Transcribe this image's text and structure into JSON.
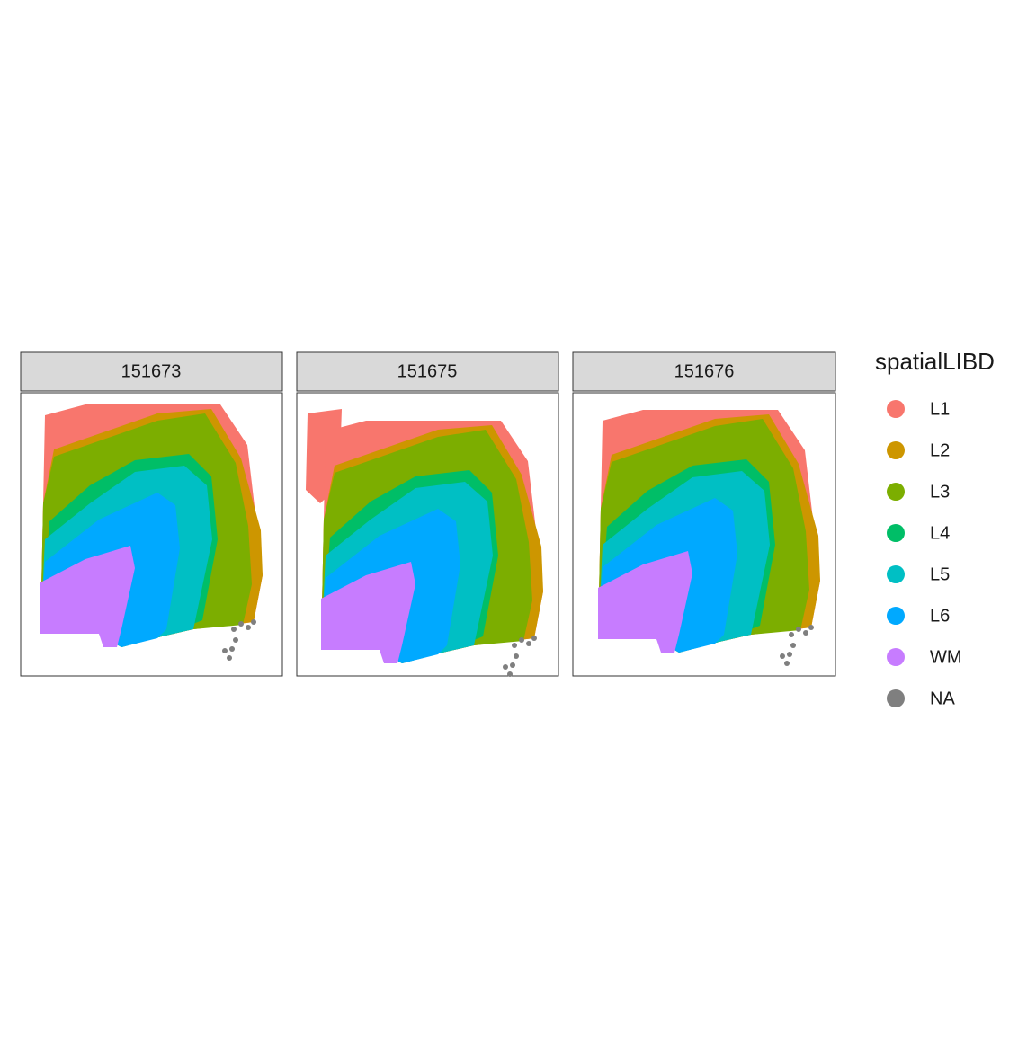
{
  "chart_data": {
    "type": "spatial",
    "facets": [
      "151673",
      "151675",
      "151676"
    ],
    "legend_title": "spatialLIBD",
    "series": [
      {
        "name": "L1",
        "color": "#F8766D"
      },
      {
        "name": "L2",
        "color": "#CD9600"
      },
      {
        "name": "L3",
        "color": "#7CAE00"
      },
      {
        "name": "L4",
        "color": "#00BE67"
      },
      {
        "name": "L5",
        "color": "#00BFC4"
      },
      {
        "name": "L6",
        "color": "#00A9FF"
      },
      {
        "name": "WM",
        "color": "#C77CFF"
      },
      {
        "name": "NA",
        "color": "#7F7F7F"
      }
    ]
  }
}
